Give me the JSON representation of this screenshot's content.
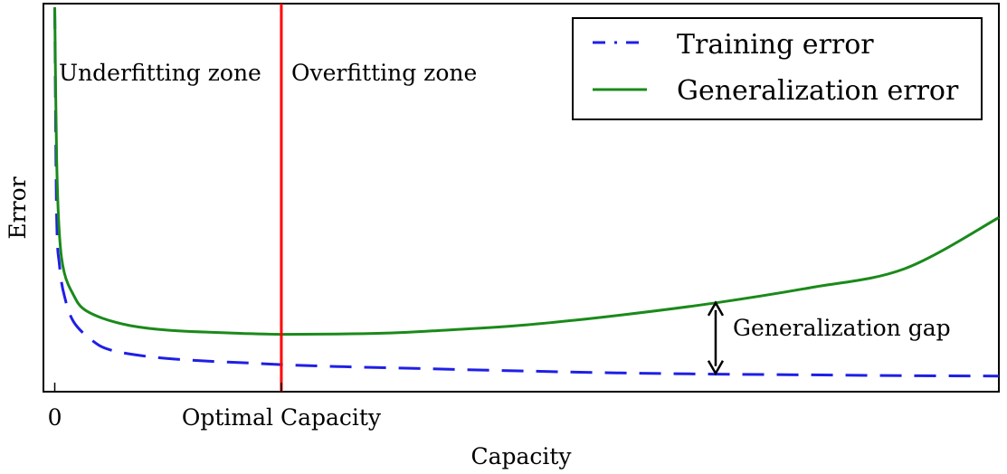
{
  "chart_data": {
    "type": "line",
    "xlabel": "Capacity",
    "ylabel": "Error",
    "x_ticks": [
      {
        "x": 0.0,
        "label": "0"
      },
      {
        "x": 0.24,
        "label": "Optimal Capacity"
      }
    ],
    "xlim": [
      -0.012,
      1.0
    ],
    "ylim": [
      0.0,
      1.0
    ],
    "grid": false,
    "legend_position": "top-right",
    "series": [
      {
        "name": "Training error",
        "style": "dashed",
        "color": "#1f1fe6",
        "x": [
          0.0,
          0.002,
          0.005,
          0.01,
          0.02,
          0.04,
          0.06,
          0.1,
          0.15,
          0.2,
          0.24,
          0.3,
          0.4,
          0.5,
          0.6,
          0.7,
          0.8,
          0.9,
          1.0
        ],
        "y": [
          1.0,
          0.45,
          0.32,
          0.24,
          0.17,
          0.12,
          0.095,
          0.078,
          0.068,
          0.062,
          0.057,
          0.052,
          0.046,
          0.04,
          0.035,
          0.032,
          0.03,
          0.028,
          0.027
        ]
      },
      {
        "name": "Generalization error",
        "style": "solid",
        "color": "#1a8a1a",
        "x": [
          0.0,
          0.002,
          0.005,
          0.01,
          0.02,
          0.03,
          0.05,
          0.08,
          0.12,
          0.18,
          0.24,
          0.3,
          0.35,
          0.4,
          0.5,
          0.6,
          0.7,
          0.8,
          0.9,
          1.0
        ],
        "y": [
          1.0,
          0.6,
          0.4,
          0.3,
          0.24,
          0.205,
          0.18,
          0.16,
          0.148,
          0.141,
          0.137,
          0.138,
          0.14,
          0.146,
          0.162,
          0.188,
          0.22,
          0.26,
          0.31,
          0.445
        ]
      }
    ],
    "annotations": {
      "vertical_line": {
        "x": 0.24,
        "color": "#ff0000"
      },
      "underfitting_label": "Underfitting zone",
      "overfitting_label": "Overfitting zone",
      "gap_label": "Generalization gap",
      "gap_arrow": {
        "x": 0.7,
        "y_top": 0.22,
        "y_bottom": 0.034
      }
    }
  }
}
